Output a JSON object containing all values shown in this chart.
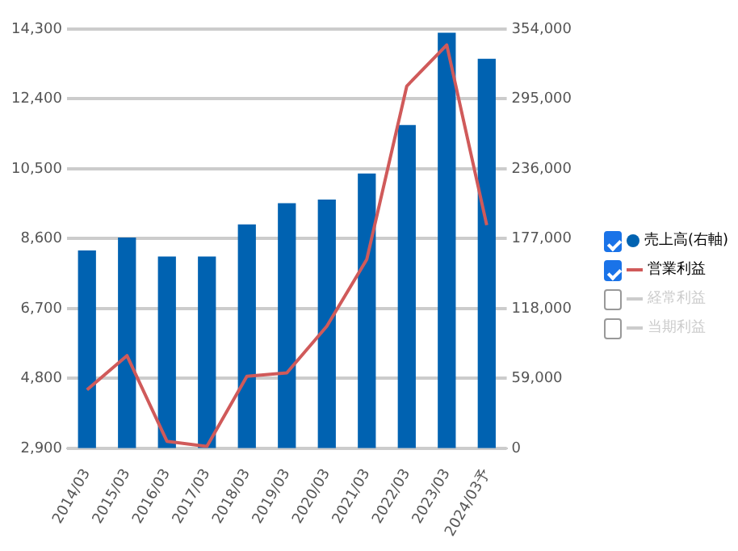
{
  "chart_data": {
    "type": "bar",
    "categories": [
      "2014/03",
      "2015/03",
      "2016/03",
      "2017/03",
      "2018/03",
      "2019/03",
      "2020/03",
      "2021/03",
      "2022/03",
      "2023/03",
      "2024/03予"
    ],
    "series": [
      {
        "name": "売上高(右軸)",
        "axis": "y2",
        "color": "#0062b1",
        "values": [
          167000,
          178000,
          162000,
          162000,
          189000,
          207000,
          210000,
          232000,
          273000,
          351000,
          329000
        ]
      },
      {
        "name": "営業利益",
        "type": "line",
        "color": "#d05a5a",
        "values": [
          4490,
          5420,
          3090,
          2950,
          4860,
          4950,
          6220,
          8040,
          12750,
          13870,
          8970
        ]
      },
      {
        "name": "経常利益",
        "type": "line",
        "color": "#cccccc",
        "values": [
          null,
          null,
          null,
          null,
          null,
          null,
          null,
          null,
          null,
          null,
          null
        ]
      },
      {
        "name": "当期利益",
        "type": "line",
        "color": "#cccccc",
        "values": [
          null,
          null,
          null,
          null,
          null,
          null,
          null,
          null,
          null,
          null,
          null
        ]
      }
    ],
    "ylim": [
      2900,
      14300
    ],
    "yticks": [
      {
        "value": 2900,
        "label": "2,900"
      },
      {
        "value": 4800,
        "label": "4,800"
      },
      {
        "value": 6700,
        "label": "6,700"
      },
      {
        "value": 8600,
        "label": "8,600"
      },
      {
        "value": 10500,
        "label": "10,500"
      },
      {
        "value": 12400,
        "label": "12,400"
      },
      {
        "value": 14300,
        "label": "14,300"
      }
    ],
    "y2lim": [
      0,
      354000
    ],
    "y2ticks": [
      0,
      {
        "value": 59000,
        "label": "59,000"
      },
      {
        "value": 118000,
        "label": "118,000"
      },
      {
        "value": 177000,
        "label": "177,000"
      },
      {
        "value": 236000,
        "label": "236,000"
      },
      {
        "value": 295000,
        "label": "295,000"
      },
      {
        "value": 354000,
        "label": "354,000"
      }
    ],
    "grid": "y",
    "legend": "right",
    "marker": "none",
    "line_style": "solid"
  }
}
